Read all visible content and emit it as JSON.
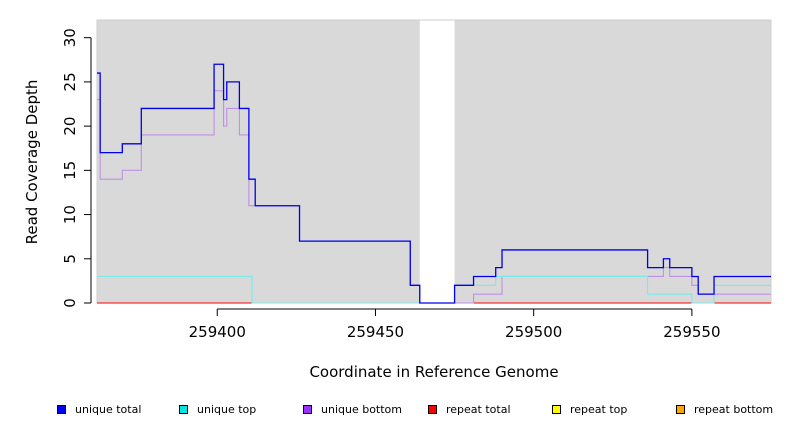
{
  "chart_data": {
    "type": "line",
    "title": "",
    "xlabel": "Coordinate in Reference Genome",
    "ylabel": "Read Coverage Depth",
    "xlim": [
      259362,
      259575
    ],
    "ylim": [
      0,
      32
    ],
    "xticks": [
      259400,
      259450,
      259500,
      259550
    ],
    "yticks": [
      0,
      5,
      10,
      15,
      20,
      25,
      30
    ],
    "grid": false,
    "background": "#d9d9d9",
    "gap": [
      259464,
      259475
    ],
    "legend_position": "bottom",
    "series": [
      {
        "name": "unique total",
        "color": "#0000ee",
        "swatch": "#0000ee",
        "points": [
          [
            259362,
            26
          ],
          [
            259363,
            26
          ],
          [
            259363,
            17
          ],
          [
            259370,
            17
          ],
          [
            259370,
            18
          ],
          [
            259376,
            18
          ],
          [
            259376,
            22
          ],
          [
            259399,
            22
          ],
          [
            259399,
            27
          ],
          [
            259402,
            27
          ],
          [
            259402,
            23
          ],
          [
            259403,
            23
          ],
          [
            259403,
            25
          ],
          [
            259407,
            25
          ],
          [
            259407,
            22
          ],
          [
            259410,
            22
          ],
          [
            259410,
            14
          ],
          [
            259412,
            14
          ],
          [
            259412,
            11
          ],
          [
            259426,
            11
          ],
          [
            259426,
            7
          ],
          [
            259461,
            7
          ],
          [
            259461,
            2
          ],
          [
            259464,
            2
          ],
          [
            259464,
            0
          ],
          [
            259475,
            0
          ],
          [
            259475,
            2
          ],
          [
            259481,
            2
          ],
          [
            259481,
            3
          ],
          [
            259488,
            3
          ],
          [
            259488,
            4
          ],
          [
            259490,
            4
          ],
          [
            259490,
            6
          ],
          [
            259536,
            6
          ],
          [
            259536,
            4
          ],
          [
            259541,
            4
          ],
          [
            259541,
            5
          ],
          [
            259543,
            5
          ],
          [
            259543,
            4
          ],
          [
            259550,
            4
          ],
          [
            259550,
            3
          ],
          [
            259552,
            3
          ],
          [
            259552,
            1
          ],
          [
            259557,
            1
          ],
          [
            259557,
            3
          ],
          [
            259575,
            3
          ]
        ]
      },
      {
        "name": "unique top",
        "color": "#7fe8e8",
        "swatch": "#00e5e5",
        "points": [
          [
            259362,
            3
          ],
          [
            259411,
            3
          ],
          [
            259411,
            0
          ],
          [
            259464,
            0
          ],
          [
            259475,
            0
          ],
          [
            259475,
            2
          ],
          [
            259488,
            2
          ],
          [
            259488,
            3
          ],
          [
            259536,
            3
          ],
          [
            259536,
            1
          ],
          [
            259550,
            1
          ],
          [
            259550,
            0
          ],
          [
            259557,
            0
          ],
          [
            259557,
            2
          ],
          [
            259575,
            2
          ]
        ]
      },
      {
        "name": "unique bottom",
        "color": "#c08fe8",
        "swatch": "#9b30ff",
        "points": [
          [
            259362,
            23
          ],
          [
            259363,
            23
          ],
          [
            259363,
            14
          ],
          [
            259370,
            14
          ],
          [
            259370,
            15
          ],
          [
            259376,
            15
          ],
          [
            259376,
            19
          ],
          [
            259399,
            19
          ],
          [
            259399,
            24
          ],
          [
            259402,
            24
          ],
          [
            259402,
            20
          ],
          [
            259403,
            20
          ],
          [
            259403,
            22
          ],
          [
            259407,
            22
          ],
          [
            259407,
            19
          ],
          [
            259410,
            19
          ],
          [
            259410,
            11
          ],
          [
            259426,
            11
          ],
          [
            259426,
            7
          ],
          [
            259461,
            7
          ],
          [
            259461,
            2
          ],
          [
            259464,
            2
          ],
          [
            259464,
            0
          ],
          [
            259481,
            0
          ],
          [
            259481,
            1
          ],
          [
            259490,
            1
          ],
          [
            259490,
            3
          ],
          [
            259541,
            3
          ],
          [
            259541,
            4
          ],
          [
            259543,
            4
          ],
          [
            259543,
            3
          ],
          [
            259550,
            3
          ],
          [
            259550,
            2
          ],
          [
            259552,
            2
          ],
          [
            259552,
            1
          ],
          [
            259575,
            1
          ]
        ]
      },
      {
        "name": "repeat total",
        "color": "#ff0000",
        "swatch": "#ff0000",
        "points": [
          [
            259362,
            0
          ],
          [
            259575,
            0
          ]
        ]
      },
      {
        "name": "repeat top",
        "color": "#ffff00",
        "swatch": "#ffff00",
        "points": [
          [
            259362,
            0
          ],
          [
            259575,
            0
          ]
        ]
      },
      {
        "name": "repeat bottom",
        "color": "#ffa500",
        "swatch": "#ffa500",
        "points": [
          [
            259362,
            0
          ],
          [
            259575,
            0
          ]
        ]
      }
    ]
  }
}
